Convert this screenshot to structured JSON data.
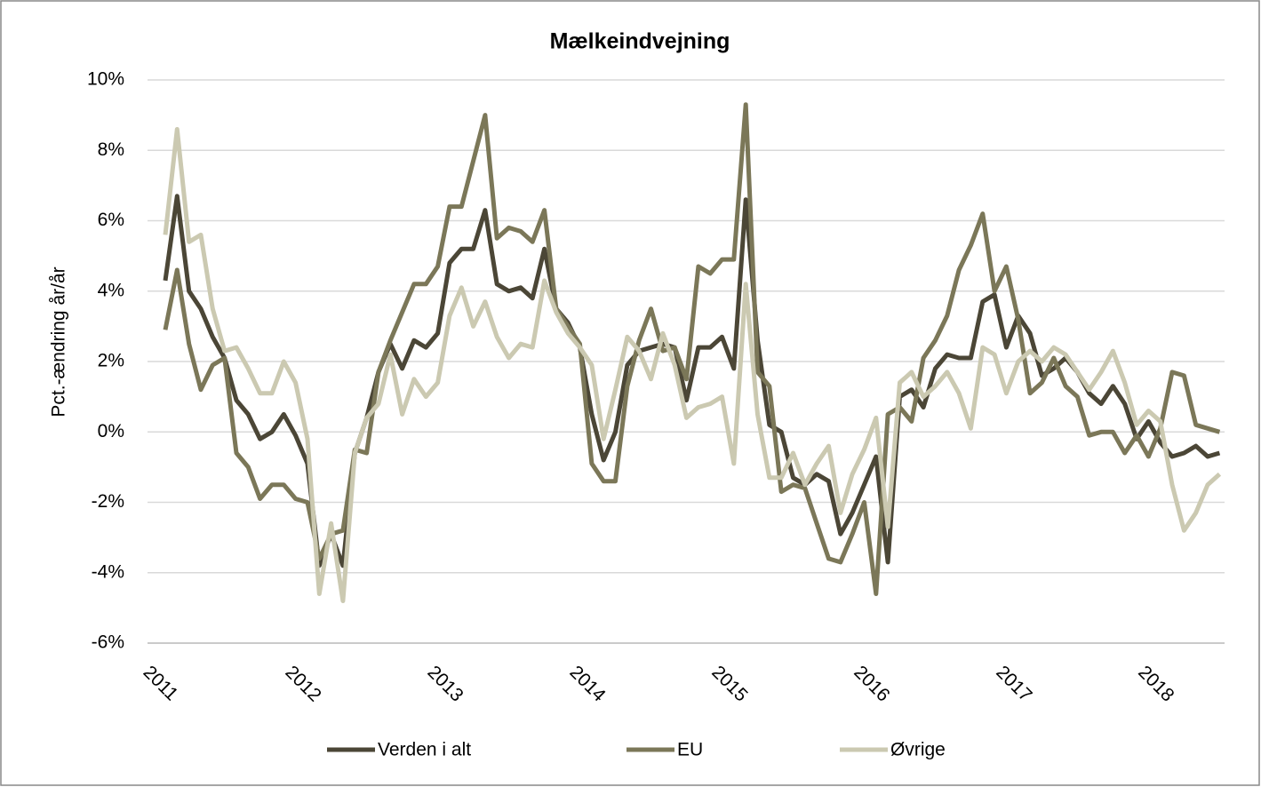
{
  "chart_data": {
    "type": "line",
    "title": "Mælkeindvejning",
    "y_label": "Pct.-ændring år/år",
    "categories": [
      "2011",
      null,
      null,
      null,
      null,
      null,
      null,
      null,
      null,
      null,
      null,
      null,
      "2012",
      null,
      null,
      null,
      null,
      null,
      null,
      null,
      null,
      null,
      null,
      null,
      "2013",
      null,
      null,
      null,
      null,
      null,
      null,
      null,
      null,
      null,
      null,
      null,
      "2014",
      null,
      null,
      null,
      null,
      null,
      null,
      null,
      null,
      null,
      null,
      null,
      "2015",
      null,
      null,
      null,
      null,
      null,
      null,
      null,
      null,
      null,
      null,
      null,
      "2016",
      null,
      null,
      null,
      null,
      null,
      null,
      null,
      null,
      null,
      null,
      null,
      "2017",
      null,
      null,
      null,
      null,
      null,
      null,
      null,
      null,
      null,
      null,
      null,
      "2018",
      null,
      null,
      null,
      null,
      null
    ],
    "series": [
      {
        "name": "Verden i alt",
        "color": "#4b4636",
        "values": [
          4.3,
          6.7,
          4.0,
          3.5,
          2.7,
          2.1,
          0.9,
          0.5,
          -0.2,
          0.0,
          0.5,
          -0.1,
          -0.9,
          -3.8,
          -2.9,
          -3.8,
          -0.6,
          0.4,
          1.7,
          2.5,
          1.8,
          2.6,
          2.4,
          2.8,
          4.8,
          5.2,
          5.2,
          6.3,
          4.2,
          4.0,
          4.1,
          3.8,
          5.2,
          3.5,
          3.1,
          2.4,
          0.5,
          -0.8,
          0.0,
          1.9,
          2.3,
          2.4,
          2.5,
          2.4,
          0.9,
          2.4,
          2.4,
          2.7,
          1.8,
          6.6,
          2.6,
          0.2,
          0.0,
          -1.3,
          -1.5,
          -1.2,
          -1.4,
          -2.9,
          -2.3,
          -1.5,
          -0.7,
          -3.7,
          1.0,
          1.2,
          0.7,
          1.8,
          2.2,
          2.1,
          2.1,
          3.7,
          3.9,
          2.4,
          3.3,
          2.8,
          1.6,
          1.8,
          2.1,
          1.7,
          1.1,
          0.8,
          1.3,
          0.8,
          -0.2,
          0.3,
          -0.3,
          -0.7,
          -0.6,
          -0.4,
          -0.7,
          -0.6
        ]
      },
      {
        "name": "EU",
        "color": "#7b7758",
        "values": [
          2.9,
          4.6,
          2.5,
          1.2,
          1.9,
          2.1,
          -0.6,
          -1.0,
          -1.9,
          -1.5,
          -1.5,
          -1.9,
          -2.0,
          -3.6,
          -2.9,
          -2.8,
          -0.5,
          -0.6,
          1.7,
          2.6,
          3.4,
          4.2,
          4.2,
          4.7,
          6.4,
          6.4,
          7.7,
          9.0,
          5.5,
          5.8,
          5.7,
          5.4,
          6.3,
          3.5,
          3.0,
          2.5,
          -0.9,
          -1.4,
          -1.4,
          1.3,
          2.6,
          3.5,
          2.3,
          2.4,
          1.5,
          4.7,
          4.5,
          4.9,
          4.9,
          9.3,
          1.7,
          1.3,
          -1.7,
          -1.5,
          -1.6,
          -2.6,
          -3.6,
          -3.7,
          -2.9,
          -2.0,
          -4.6,
          0.5,
          0.7,
          0.3,
          2.1,
          2.6,
          3.3,
          4.6,
          5.3,
          6.2,
          4.0,
          4.7,
          3.2,
          1.1,
          1.4,
          2.1,
          1.3,
          1.0,
          -0.1,
          0.0,
          0.0,
          -0.6,
          -0.1,
          -0.7,
          0.1,
          1.7,
          1.6,
          0.2,
          0.1,
          0.0
        ]
      },
      {
        "name": "Øvrige",
        "color": "#cbc9b1",
        "values": [
          5.6,
          8.6,
          5.4,
          5.6,
          3.5,
          2.3,
          2.4,
          1.8,
          1.1,
          1.1,
          2.0,
          1.4,
          -0.2,
          -4.6,
          -2.6,
          -4.8,
          -0.6,
          0.4,
          0.8,
          2.2,
          0.5,
          1.5,
          1.0,
          1.4,
          3.3,
          4.1,
          3.0,
          3.7,
          2.7,
          2.1,
          2.5,
          2.4,
          4.3,
          3.4,
          2.8,
          2.4,
          1.9,
          -0.2,
          1.2,
          2.7,
          2.3,
          1.5,
          2.8,
          1.9,
          0.4,
          0.7,
          0.8,
          1.0,
          -0.9,
          4.2,
          0.5,
          -1.3,
          -1.3,
          -0.6,
          -1.5,
          -0.9,
          -0.4,
          -2.3,
          -1.2,
          -0.5,
          0.4,
          -2.7,
          1.4,
          1.7,
          1.0,
          1.3,
          1.7,
          1.1,
          0.1,
          2.4,
          2.2,
          1.1,
          2.0,
          2.3,
          2.0,
          2.4,
          2.2,
          1.7,
          1.2,
          1.7,
          2.3,
          1.4,
          0.2,
          0.6,
          0.3,
          -1.5,
          -2.8,
          -2.3,
          -1.5,
          -1.2
        ]
      }
    ],
    "ylim": [
      -6,
      10
    ],
    "yticks": [
      {
        "value": -6,
        "label": "-6%"
      },
      {
        "value": -4,
        "label": "-4%"
      },
      {
        "value": -2,
        "label": "-2%"
      },
      {
        "value": 0,
        "label": "0%"
      },
      {
        "value": 2,
        "label": "2%"
      },
      {
        "value": 4,
        "label": "4%"
      },
      {
        "value": 6,
        "label": "6%"
      },
      {
        "value": 8,
        "label": "8%"
      },
      {
        "value": 10,
        "label": "10%"
      }
    ],
    "grid": true,
    "legend": "bottom"
  }
}
